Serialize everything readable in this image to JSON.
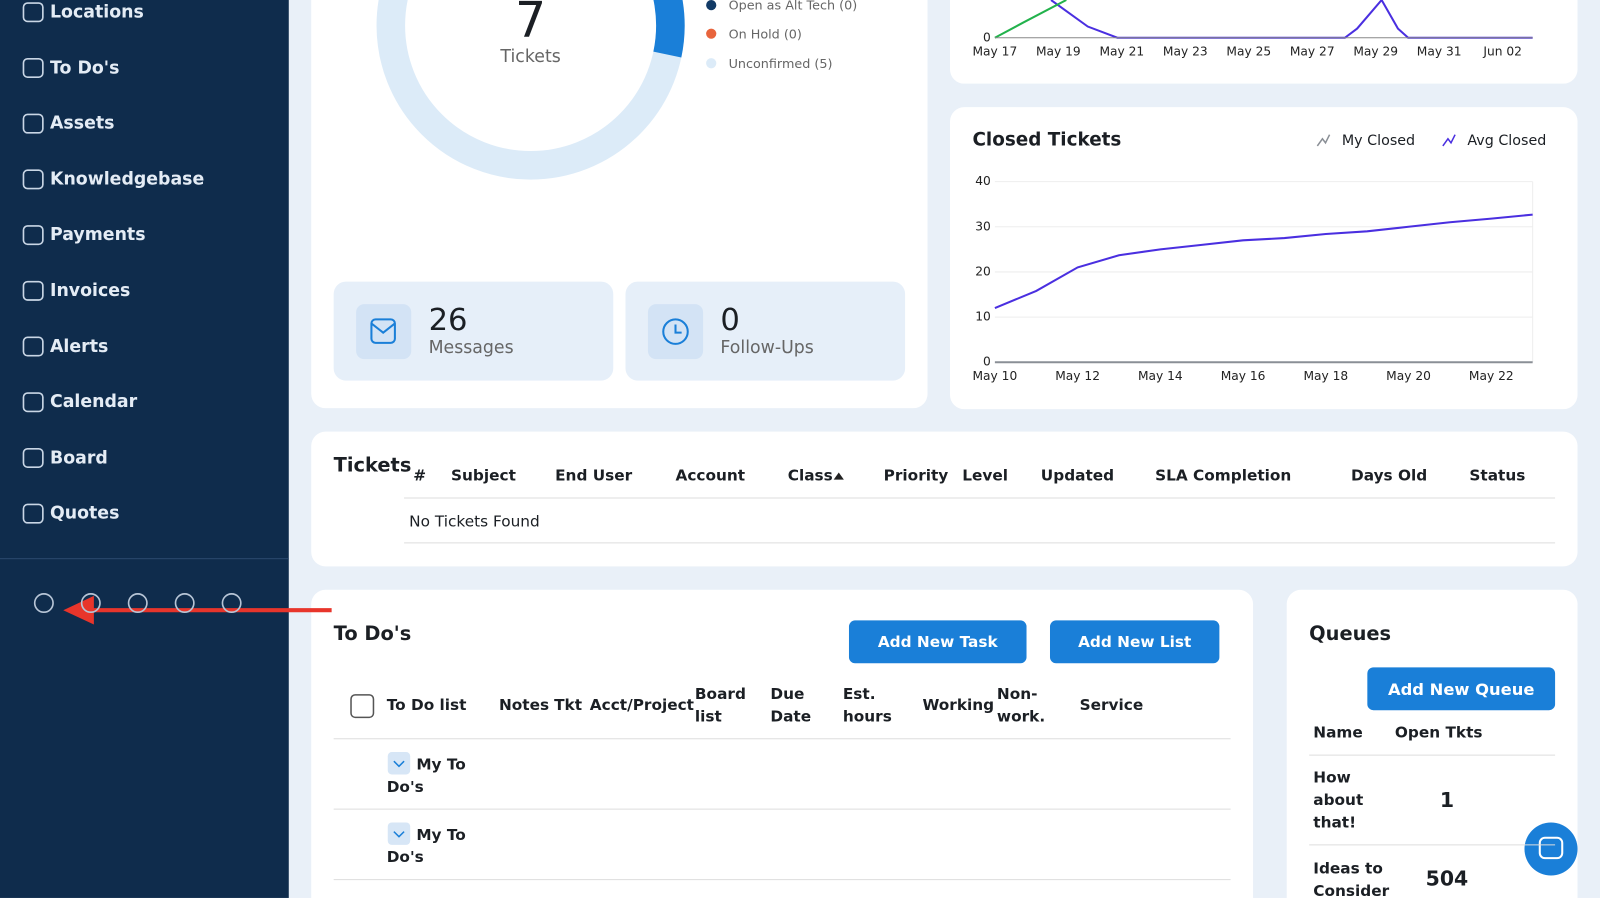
{
  "sidebar": {
    "items": [
      "Locations",
      "To Do's",
      "Assets",
      "Knowledgebase",
      "Payments",
      "Invoices",
      "Alerts",
      "Calendar",
      "Board",
      "Quotes"
    ]
  },
  "ticket_summary": {
    "count": 7,
    "label": "Tickets",
    "legend": [
      "Open as Alt Tech (0)",
      "On Hold (0)",
      "Unconfirmed (5)"
    ]
  },
  "stats": [
    {
      "value": 26,
      "label": "Messages"
    },
    {
      "value": 0,
      "label": "Follow-Ups"
    }
  ],
  "open_chart": {
    "x": [
      "May 17",
      "May 19",
      "May 21",
      "May 23",
      "May 25",
      "May 27",
      "May 29",
      "May 31",
      "Jun 02"
    ],
    "yticks": [
      0
    ]
  },
  "closed_chart": {
    "title": "Closed Tickets",
    "categories": [
      "May 10",
      null,
      "May 12",
      null,
      "May 14",
      null,
      "May 16",
      null,
      "May 18",
      null,
      "May 20",
      null,
      "May 22",
      null
    ],
    "series": [
      {
        "name": "My Closed",
        "color": "#8a8f96",
        "values": [
          0,
          0,
          0,
          0,
          0,
          0,
          0,
          0,
          0,
          0,
          0,
          0,
          0,
          0
        ]
      },
      {
        "name": "Avg Closed",
        "color": "#4a2fe0",
        "values": [
          12,
          15.8,
          21,
          23.7,
          25,
          26,
          27,
          27.5,
          28.4,
          29,
          30,
          31,
          31.8,
          32.7
        ]
      }
    ],
    "ylim": [
      0,
      40
    ],
    "yticks": [
      0,
      10,
      20,
      30,
      40
    ],
    "grid": true
  },
  "tickets": {
    "title": "Tickets",
    "headers": [
      "#",
      "Subject",
      "End User",
      "Account",
      "Class",
      "Priority",
      "Level",
      "Updated",
      "SLA Completion",
      "Days Old",
      "Status"
    ],
    "empty": "No Tickets Found"
  },
  "todos": {
    "title": "To Do's",
    "buttons": [
      "Add New Task",
      "Add New List"
    ],
    "headers": [
      "To Do list",
      "Notes",
      "Tkt",
      "Acct/Project",
      "Board list",
      "Due Date",
      "Est. hours",
      "Working",
      "Non-work.",
      "Service"
    ],
    "rows": [
      "My To Do's",
      "My To Do's"
    ]
  },
  "queues": {
    "title": "Queues",
    "button": "Add New Queue",
    "headers": [
      "Name",
      "Open Tkts"
    ],
    "rows": [
      [
        "How about that!",
        1
      ],
      [
        "Ideas to Consider",
        504
      ]
    ]
  }
}
